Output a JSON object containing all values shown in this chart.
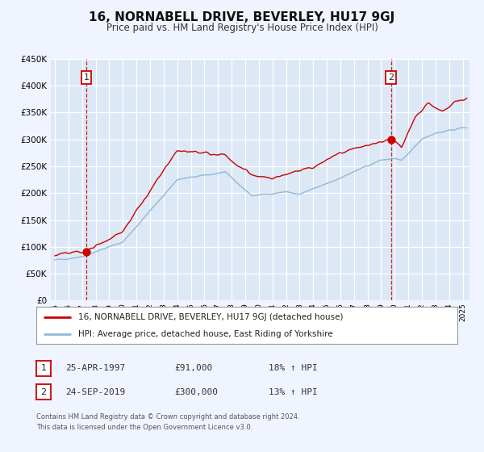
{
  "title": "16, NORNABELL DRIVE, BEVERLEY, HU17 9GJ",
  "subtitle": "Price paid vs. HM Land Registry's House Price Index (HPI)",
  "fig_bg_color": "#f0f4ff",
  "plot_bg_color": "#dce8f5",
  "grid_color": "#ffffff",
  "hpi_color": "#90b8d8",
  "price_color": "#cc0000",
  "marker_color": "#cc0000",
  "sale1_date_num": 1997.32,
  "sale1_price": 91000,
  "sale2_date_num": 2019.73,
  "sale2_price": 300000,
  "sale1_label": "1",
  "sale2_label": "2",
  "legend_line1": "16, NORNABELL DRIVE, BEVERLEY, HU17 9GJ (detached house)",
  "legend_line2": "HPI: Average price, detached house, East Riding of Yorkshire",
  "table_row1": [
    "1",
    "25-APR-1997",
    "£91,000",
    "18% ↑ HPI"
  ],
  "table_row2": [
    "2",
    "24-SEP-2019",
    "£300,000",
    "13% ↑ HPI"
  ],
  "footer1": "Contains HM Land Registry data © Crown copyright and database right 2024.",
  "footer2": "This data is licensed under the Open Government Licence v3.0.",
  "ylim": [
    0,
    450000
  ],
  "xlim_start": 1994.7,
  "xlim_end": 2025.5,
  "hpi_noise_seed": 42,
  "price_noise_seed": 42
}
